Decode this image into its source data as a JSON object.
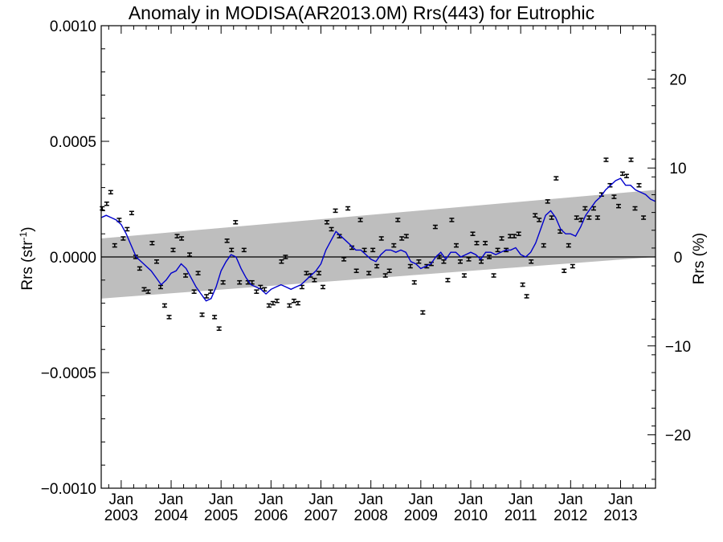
{
  "chart_data": {
    "type": "line",
    "title": "Anomaly in MODISA(AR2013.0M) Rrs(443) for Eutrophic",
    "ylabel_left": "Rrs (str",
    "ylabel_left_sup": "-1",
    "ylabel_left_close": ")",
    "ylabel_right": "Rrs (%)",
    "ylim_left": [
      -0.001,
      0.001
    ],
    "ylim_right": [
      -26,
      26
    ],
    "xlim": [
      2002.6,
      2013.7
    ],
    "y_ticks_left": [
      {
        "v": 0.001,
        "label": "0.0010"
      },
      {
        "v": 0.0005,
        "label": "0.0005"
      },
      {
        "v": 0.0,
        "label": "0.0000"
      },
      {
        "v": -0.0005,
        "label": "−0.0005"
      },
      {
        "v": -0.001,
        "label": "−0.0010"
      }
    ],
    "y_ticks_right": [
      {
        "v": 20,
        "label": "20"
      },
      {
        "v": 10,
        "label": "10"
      },
      {
        "v": 0,
        "label": "0"
      },
      {
        "v": -10,
        "label": "−10"
      },
      {
        "v": -20,
        "label": "−20"
      }
    ],
    "x_ticks": [
      {
        "x": 2003.0,
        "month": "Jan",
        "year": "2003"
      },
      {
        "x": 2004.0,
        "month": "Jan",
        "year": "2004"
      },
      {
        "x": 2005.0,
        "month": "Jan",
        "year": "2005"
      },
      {
        "x": 2006.0,
        "month": "Jan",
        "year": "2006"
      },
      {
        "x": 2007.0,
        "month": "Jan",
        "year": "2007"
      },
      {
        "x": 2008.0,
        "month": "Jan",
        "year": "2008"
      },
      {
        "x": 2009.0,
        "month": "Jan",
        "year": "2009"
      },
      {
        "x": 2010.0,
        "month": "Jan",
        "year": "2010"
      },
      {
        "x": 2011.0,
        "month": "Jan",
        "year": "2011"
      },
      {
        "x": 2012.0,
        "month": "Jan",
        "year": "2012"
      },
      {
        "x": 2013.0,
        "month": "Jan",
        "year": "2013"
      }
    ],
    "band": {
      "x_start": 2002.6,
      "x_end": 2013.7,
      "upper_start": 8e-05,
      "upper_end": 0.00029,
      "lower_start": -0.00018,
      "lower_end": 0.0,
      "color": "#bebebe"
    },
    "zero_line": true,
    "colors": {
      "smoothed": "#0000cc",
      "points": "#000000",
      "band": "#bebebe"
    },
    "series": [
      {
        "kind": "points_with_errorbars",
        "points": [
          [
            2002.62,
            0.00021
          ],
          [
            2002.71,
            0.00023
          ],
          [
            2002.79,
            0.00028
          ],
          [
            2002.87,
            5e-05
          ],
          [
            2002.96,
            0.00016
          ],
          [
            2003.04,
            8e-05
          ],
          [
            2003.12,
            0.00012
          ],
          [
            2003.21,
            0.00019
          ],
          [
            2003.29,
            0.0
          ],
          [
            2003.37,
            -5e-05
          ],
          [
            2003.46,
            -0.00014
          ],
          [
            2003.54,
            -0.00015
          ],
          [
            2003.62,
            6e-05
          ],
          [
            2003.71,
            -2e-05
          ],
          [
            2003.79,
            -0.00013
          ],
          [
            2003.87,
            -0.00021
          ],
          [
            2003.96,
            -0.00026
          ],
          [
            2004.04,
            3e-05
          ],
          [
            2004.12,
            9e-05
          ],
          [
            2004.21,
            8e-05
          ],
          [
            2004.29,
            -8e-05
          ],
          [
            2004.37,
            1e-05
          ],
          [
            2004.46,
            -0.00015
          ],
          [
            2004.54,
            -7e-05
          ],
          [
            2004.62,
            -0.00025
          ],
          [
            2004.71,
            -0.00017
          ],
          [
            2004.79,
            -0.00015
          ],
          [
            2004.87,
            -0.00026
          ],
          [
            2004.96,
            -0.00031
          ],
          [
            2005.04,
            -0.00011
          ],
          [
            2005.12,
            7e-05
          ],
          [
            2005.21,
            3e-05
          ],
          [
            2005.29,
            0.00015
          ],
          [
            2005.37,
            -0.00011
          ],
          [
            2005.46,
            3e-05
          ],
          [
            2005.54,
            -0.00011
          ],
          [
            2005.62,
            -0.00011
          ],
          [
            2005.71,
            -0.00015
          ],
          [
            2005.79,
            -0.00013
          ],
          [
            2005.87,
            -0.00014
          ],
          [
            2005.96,
            -0.00021
          ],
          [
            2006.04,
            -0.0002
          ],
          [
            2006.12,
            -0.00019
          ],
          [
            2006.21,
            -2e-05
          ],
          [
            2006.29,
            0.0
          ],
          [
            2006.37,
            -0.00021
          ],
          [
            2006.46,
            -0.00019
          ],
          [
            2006.54,
            -0.0002
          ],
          [
            2006.62,
            -0.00013
          ],
          [
            2006.71,
            -7e-05
          ],
          [
            2006.79,
            -8e-05
          ],
          [
            2006.87,
            -0.0001
          ],
          [
            2006.96,
            -7e-05
          ],
          [
            2007.04,
            -0.00013
          ],
          [
            2007.12,
            0.00015
          ],
          [
            2007.21,
            0.00012
          ],
          [
            2007.29,
            0.0002
          ],
          [
            2007.37,
            9e-05
          ],
          [
            2007.46,
            -1e-05
          ],
          [
            2007.54,
            0.00021
          ],
          [
            2007.62,
            4e-05
          ],
          [
            2007.71,
            -6e-05
          ],
          [
            2007.79,
            0.00016
          ],
          [
            2007.87,
            3e-05
          ],
          [
            2007.96,
            -7e-05
          ],
          [
            2008.04,
            3e-05
          ],
          [
            2008.12,
            -4e-05
          ],
          [
            2008.21,
            8e-05
          ],
          [
            2008.29,
            -8e-05
          ],
          [
            2008.37,
            -6e-05
          ],
          [
            2008.46,
            5e-05
          ],
          [
            2008.54,
            0.00016
          ],
          [
            2008.62,
            8e-05
          ],
          [
            2008.71,
            9e-05
          ],
          [
            2008.79,
            -4e-05
          ],
          [
            2008.87,
            -0.00011
          ],
          [
            2008.96,
            -2e-05
          ],
          [
            2009.04,
            -0.00024
          ],
          [
            2009.12,
            -4e-05
          ],
          [
            2009.21,
            -3e-05
          ],
          [
            2009.29,
            0.00013
          ],
          [
            2009.37,
            0.0
          ],
          [
            2009.46,
            -2e-05
          ],
          [
            2009.54,
            -0.0001
          ],
          [
            2009.62,
            0.00016
          ],
          [
            2009.71,
            5e-05
          ],
          [
            2009.79,
            -2e-05
          ],
          [
            2009.87,
            -8e-05
          ],
          [
            2009.96,
            -1e-05
          ],
          [
            2010.04,
            0.0001
          ],
          [
            2010.12,
            6e-05
          ],
          [
            2010.21,
            -2e-05
          ],
          [
            2010.29,
            6e-05
          ],
          [
            2010.37,
            0.0
          ],
          [
            2010.46,
            -8e-05
          ],
          [
            2010.54,
            3e-05
          ],
          [
            2010.62,
            8e-05
          ],
          [
            2010.71,
            3e-05
          ],
          [
            2010.79,
            9e-05
          ],
          [
            2010.87,
            9e-05
          ],
          [
            2010.96,
            0.0001
          ],
          [
            2011.04,
            -0.00012
          ],
          [
            2011.12,
            -0.00017
          ],
          [
            2011.21,
            -2e-05
          ],
          [
            2011.29,
            0.00018
          ],
          [
            2011.37,
            0.00016
          ],
          [
            2011.46,
            5e-05
          ],
          [
            2011.54,
            0.00024
          ],
          [
            2011.62,
            0.00017
          ],
          [
            2011.71,
            0.00034
          ],
          [
            2011.79,
            0.00011
          ],
          [
            2011.87,
            -6e-05
          ],
          [
            2011.96,
            5e-05
          ],
          [
            2012.04,
            -4e-05
          ],
          [
            2012.12,
            0.00017
          ],
          [
            2012.21,
            0.00016
          ],
          [
            2012.29,
            0.00021
          ],
          [
            2012.37,
            0.00017
          ],
          [
            2012.46,
            0.00021
          ],
          [
            2012.54,
            0.00017
          ],
          [
            2012.62,
            0.00027
          ],
          [
            2012.71,
            0.00042
          ],
          [
            2012.79,
            0.00031
          ],
          [
            2012.87,
            0.00026
          ],
          [
            2012.96,
            0.00022
          ],
          [
            2013.04,
            0.00036
          ],
          [
            2013.12,
            0.00035
          ],
          [
            2013.21,
            0.00042
          ],
          [
            2013.29,
            0.00021
          ],
          [
            2013.37,
            0.00031
          ],
          [
            2013.46,
            0.00017
          ]
        ]
      },
      {
        "kind": "smoothed_line",
        "points": [
          [
            2002.6,
            0.00017
          ],
          [
            2002.7,
            0.00018
          ],
          [
            2002.8,
            0.00017
          ],
          [
            2002.9,
            0.00016
          ],
          [
            2003.0,
            0.00014
          ],
          [
            2003.1,
            0.0001
          ],
          [
            2003.2,
            5e-05
          ],
          [
            2003.3,
            0.0
          ],
          [
            2003.4,
            -2e-05
          ],
          [
            2003.5,
            -4e-05
          ],
          [
            2003.6,
            -6e-05
          ],
          [
            2003.7,
            -9e-05
          ],
          [
            2003.8,
            -0.00012
          ],
          [
            2003.9,
            -0.0001
          ],
          [
            2004.0,
            -7e-05
          ],
          [
            2004.1,
            -6e-05
          ],
          [
            2004.2,
            -3e-05
          ],
          [
            2004.3,
            -5e-05
          ],
          [
            2004.4,
            -9e-05
          ],
          [
            2004.5,
            -0.00013
          ],
          [
            2004.6,
            -0.00016
          ],
          [
            2004.7,
            -0.00019
          ],
          [
            2004.8,
            -0.00018
          ],
          [
            2004.9,
            -0.00013
          ],
          [
            2005.0,
            -6e-05
          ],
          [
            2005.1,
            -2e-05
          ],
          [
            2005.2,
            1e-05
          ],
          [
            2005.3,
            0.0
          ],
          [
            2005.4,
            -5e-05
          ],
          [
            2005.5,
            -9e-05
          ],
          [
            2005.6,
            -0.00012
          ],
          [
            2005.7,
            -0.00013
          ],
          [
            2005.8,
            -0.00014
          ],
          [
            2005.9,
            -0.00016
          ],
          [
            2006.0,
            -0.00014
          ],
          [
            2006.1,
            -0.00013
          ],
          [
            2006.2,
            -0.00012
          ],
          [
            2006.3,
            -0.00013
          ],
          [
            2006.4,
            -0.00014
          ],
          [
            2006.5,
            -0.00013
          ],
          [
            2006.6,
            -0.00012
          ],
          [
            2006.7,
            -0.0001
          ],
          [
            2006.8,
            -8e-05
          ],
          [
            2006.9,
            -6e-05
          ],
          [
            2007.0,
            -3e-05
          ],
          [
            2007.1,
            3e-05
          ],
          [
            2007.2,
            7e-05
          ],
          [
            2007.3,
            0.00011
          ],
          [
            2007.4,
            9e-05
          ],
          [
            2007.5,
            7e-05
          ],
          [
            2007.6,
            5e-05
          ],
          [
            2007.7,
            3e-05
          ],
          [
            2007.8,
            3e-05
          ],
          [
            2007.9,
            1e-05
          ],
          [
            2008.0,
            -1e-05
          ],
          [
            2008.1,
            -2e-05
          ],
          [
            2008.2,
            1e-05
          ],
          [
            2008.3,
            3e-05
          ],
          [
            2008.4,
            3e-05
          ],
          [
            2008.5,
            2e-05
          ],
          [
            2008.6,
            3e-05
          ],
          [
            2008.7,
            2e-05
          ],
          [
            2008.8,
            -2e-05
          ],
          [
            2008.9,
            -3e-05
          ],
          [
            2009.0,
            -5e-05
          ],
          [
            2009.1,
            -4e-05
          ],
          [
            2009.2,
            -3e-05
          ],
          [
            2009.3,
            0.0
          ],
          [
            2009.4,
            2e-05
          ],
          [
            2009.5,
            -1e-05
          ],
          [
            2009.6,
            2e-05
          ],
          [
            2009.7,
            2e-05
          ],
          [
            2009.8,
            0.0
          ],
          [
            2009.9,
            1e-05
          ],
          [
            2010.0,
            2e-05
          ],
          [
            2010.1,
            1e-05
          ],
          [
            2010.2,
            -1e-05
          ],
          [
            2010.3,
            2e-05
          ],
          [
            2010.4,
            2e-05
          ],
          [
            2010.5,
            1e-05
          ],
          [
            2010.6,
            2e-05
          ],
          [
            2010.7,
            3e-05
          ],
          [
            2010.8,
            3e-05
          ],
          [
            2010.9,
            4e-05
          ],
          [
            2011.0,
            1e-05
          ],
          [
            2011.1,
            0.0
          ],
          [
            2011.2,
            2e-05
          ],
          [
            2011.3,
            6e-05
          ],
          [
            2011.4,
            0.00012
          ],
          [
            2011.5,
            0.00018
          ],
          [
            2011.6,
            0.0002
          ],
          [
            2011.7,
            0.00017
          ],
          [
            2011.8,
            0.00012
          ],
          [
            2011.9,
            0.0001
          ],
          [
            2012.0,
            0.0001
          ],
          [
            2012.1,
            9e-05
          ],
          [
            2012.2,
            0.00013
          ],
          [
            2012.3,
            0.00018
          ],
          [
            2012.4,
            0.00021
          ],
          [
            2012.5,
            0.00024
          ],
          [
            2012.6,
            0.00026
          ],
          [
            2012.7,
            0.00029
          ],
          [
            2012.8,
            0.00031
          ],
          [
            2012.9,
            0.00033
          ],
          [
            2013.0,
            0.00034
          ],
          [
            2013.1,
            0.00031
          ],
          [
            2013.2,
            0.00031
          ],
          [
            2013.3,
            0.00029
          ],
          [
            2013.4,
            0.00028
          ],
          [
            2013.5,
            0.00027
          ],
          [
            2013.6,
            0.00025
          ],
          [
            2013.7,
            0.00024
          ]
        ]
      }
    ]
  }
}
